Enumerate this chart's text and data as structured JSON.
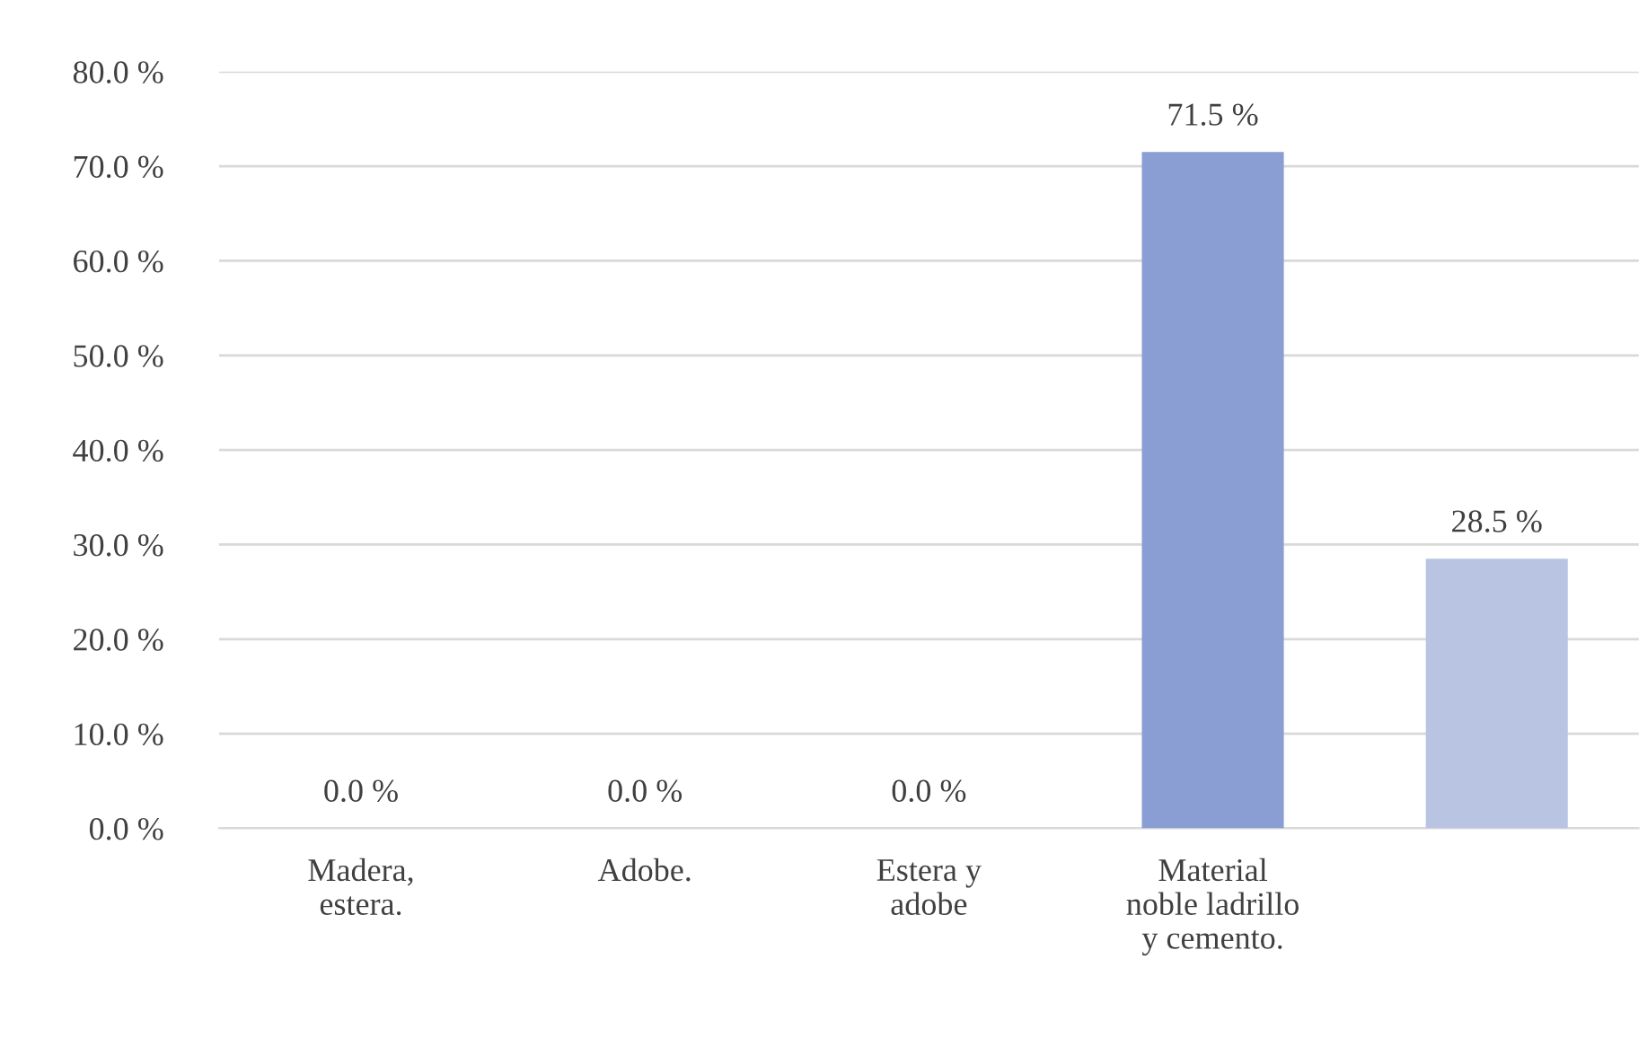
{
  "chart_data": {
    "type": "bar",
    "categories": [
      "Madera,\nestera.",
      "Adobe.",
      "Estera y\nadobe",
      "Material\nnoble ladrillo\ny cemento.",
      null
    ],
    "values": [
      0,
      0,
      0,
      71.5,
      28.5
    ],
    "colors": [
      "#8a9ed4",
      "#8a9ed4",
      "#8a9ed4",
      "#8a9ed4",
      "#b9c4e3"
    ],
    "value_labels": [
      "0.0 %",
      "0.0 %",
      "0.0 %",
      "71.5 %",
      "28.5 %"
    ],
    "ylim": [
      0,
      80
    ],
    "yticks": [
      {
        "value": 0,
        "label": "0.0 %"
      },
      {
        "value": 10,
        "label": "10.0 %"
      },
      {
        "value": 20,
        "label": "20.0 %"
      },
      {
        "value": 30,
        "label": "30.0 %"
      },
      {
        "value": 40,
        "label": "40.0 %"
      },
      {
        "value": 50,
        "label": "50.0 %"
      },
      {
        "value": 60,
        "label": "60.0 %"
      },
      {
        "value": 70,
        "label": "70.0 %"
      },
      {
        "value": 80,
        "label": "80.0 %"
      }
    ],
    "grid": "y",
    "legend": false
  }
}
